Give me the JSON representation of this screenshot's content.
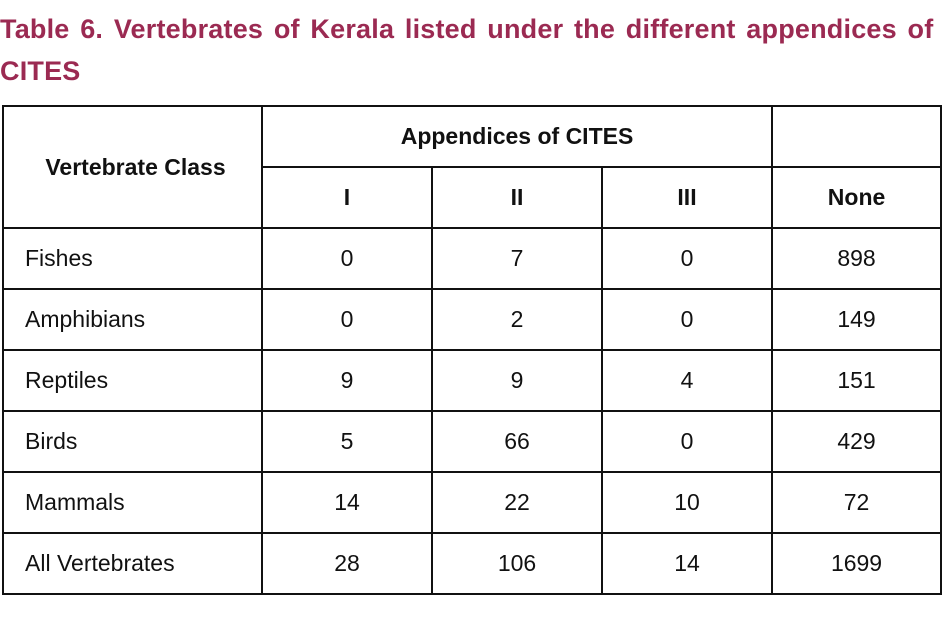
{
  "caption": "Table 6. Vertebrates of Kerala listed under the different appendices of CITES",
  "table": {
    "header": {
      "class_label": "Vertebrate Class",
      "group_label": "Appendices of CITES",
      "columns": [
        "I",
        "II",
        "III",
        "None"
      ]
    },
    "rows": [
      {
        "class": "Fishes",
        "values": [
          "0",
          "7",
          "0",
          "898"
        ]
      },
      {
        "class": "Amphibians",
        "values": [
          "0",
          "2",
          "0",
          "149"
        ]
      },
      {
        "class": "Reptiles",
        "values": [
          "9",
          "9",
          "4",
          "151"
        ]
      },
      {
        "class": "Birds",
        "values": [
          "5",
          "66",
          "0",
          "429"
        ]
      },
      {
        "class": "Mammals",
        "values": [
          "14",
          "22",
          "10",
          "72"
        ]
      },
      {
        "class": "All Vertebrates",
        "values": [
          "28",
          "106",
          "14",
          "1699"
        ]
      }
    ]
  },
  "colors": {
    "caption": "#9b2a52",
    "border": "#111111"
  }
}
